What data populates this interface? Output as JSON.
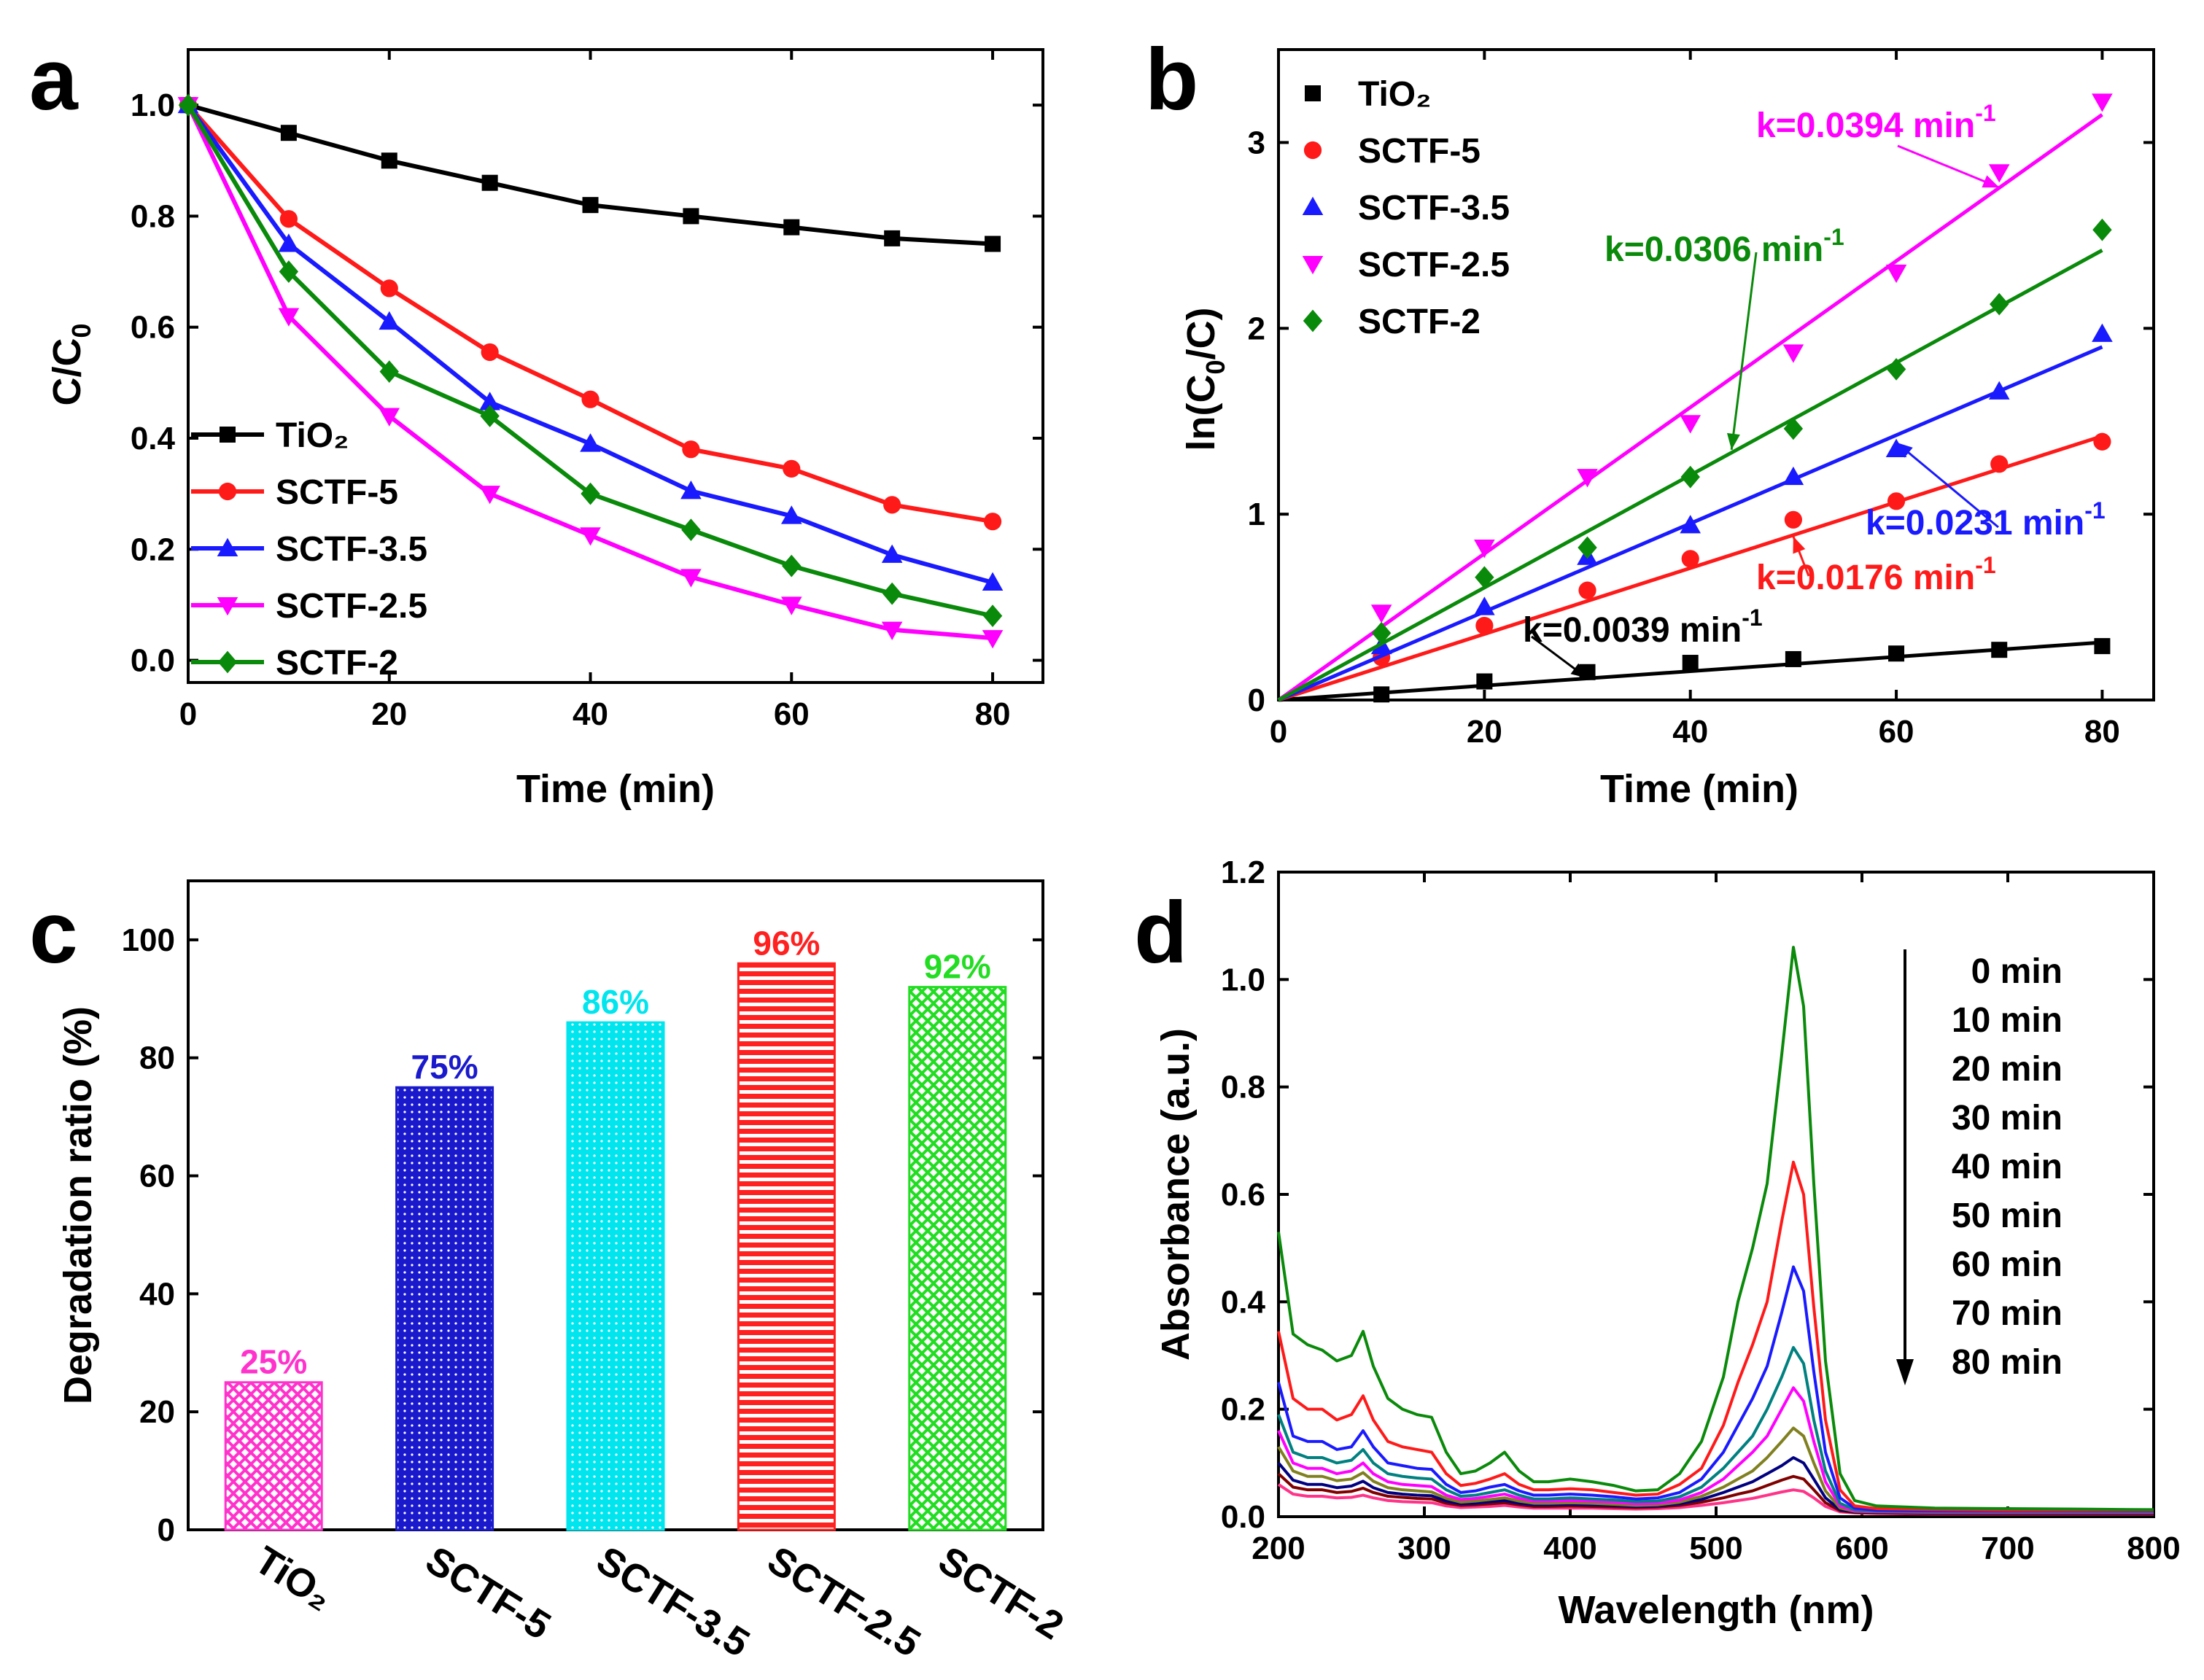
{
  "chart_data": [
    {
      "panel": "a",
      "type": "line",
      "panel_label": "a",
      "xlabel": "Time (min)",
      "ylabel": "C/C0",
      "ylabel_main": "C/C",
      "ylabel_sub": "0",
      "xlim": [
        0,
        85
      ],
      "ylim": [
        -0.04,
        1.1
      ],
      "xticks": [
        0,
        20,
        40,
        60,
        80
      ],
      "yticks": [
        0.0,
        0.2,
        0.4,
        0.6,
        0.8,
        1.0
      ],
      "ytick_labels": [
        "0.0",
        "0.2",
        "0.4",
        "0.6",
        "0.8",
        "1.0"
      ],
      "x": [
        0,
        10,
        20,
        30,
        40,
        50,
        60,
        70,
        80
      ],
      "legend_position": "bottom-left",
      "series": [
        {
          "name": "TiO₂",
          "color": "#000000",
          "marker": "square",
          "values": [
            1.0,
            0.95,
            0.9,
            0.86,
            0.82,
            0.8,
            0.78,
            0.76,
            0.75
          ]
        },
        {
          "name": "SCTF-5",
          "color": "#ff1a1a",
          "marker": "circle",
          "values": [
            1.0,
            0.795,
            0.67,
            0.555,
            0.47,
            0.38,
            0.345,
            0.28,
            0.25
          ]
        },
        {
          "name": "SCTF-3.5",
          "color": "#1a1aff",
          "marker": "triangle-up",
          "values": [
            1.0,
            0.75,
            0.61,
            0.465,
            0.39,
            0.305,
            0.26,
            0.19,
            0.14
          ]
        },
        {
          "name": "SCTF-2.5",
          "color": "#ff00ff",
          "marker": "triangle-down",
          "values": [
            1.0,
            0.62,
            0.44,
            0.3,
            0.225,
            0.15,
            0.1,
            0.055,
            0.04
          ]
        },
        {
          "name": "SCTF-2",
          "color": "#0a8a0a",
          "marker": "diamond",
          "values": [
            1.0,
            0.7,
            0.52,
            0.44,
            0.3,
            0.235,
            0.17,
            0.12,
            0.08
          ]
        }
      ]
    },
    {
      "panel": "b",
      "type": "scatter",
      "panel_label": "b",
      "xlabel": "Time (min)",
      "ylabel": "ln(C0/C)",
      "ylabel_pre": "ln(C",
      "ylabel_sub": "0",
      "ylabel_post": "/C)",
      "xlim": [
        0,
        85
      ],
      "ylim": [
        0,
        3.5
      ],
      "xticks": [
        0,
        20,
        40,
        60,
        80
      ],
      "yticks": [
        0,
        1,
        2,
        3
      ],
      "ytick_labels": [
        "0",
        "1",
        "2",
        "3"
      ],
      "x": [
        0,
        10,
        20,
        30,
        40,
        50,
        60,
        70,
        80
      ],
      "legend_position": "top-left",
      "series": [
        {
          "name": "TiO₂",
          "color": "#000000",
          "marker": "square",
          "k": 0.0039,
          "fit_end": 0.31,
          "annotation": "k=0.0039 min",
          "values": [
            0,
            0.03,
            0.1,
            0.15,
            0.2,
            0.22,
            0.25,
            0.27,
            0.29
          ]
        },
        {
          "name": "SCTF-5",
          "color": "#ff1a1a",
          "marker": "circle",
          "k": 0.0176,
          "fit_end": 1.42,
          "annotation": "k=0.0176 min",
          "values": [
            0,
            0.23,
            0.4,
            0.59,
            0.76,
            0.97,
            1.07,
            1.27,
            1.39
          ]
        },
        {
          "name": "SCTF-3.5",
          "color": "#1a1aff",
          "marker": "triangle-up",
          "k": 0.0231,
          "fit_end": 1.9,
          "annotation": "k=0.0231 min",
          "values": [
            0,
            0.29,
            0.5,
            0.77,
            0.94,
            1.2,
            1.35,
            1.66,
            1.97
          ]
        },
        {
          "name": "SCTF-2.5",
          "color": "#ff00ff",
          "marker": "triangle-down",
          "k": 0.0394,
          "fit_end": 3.15,
          "annotation": "k=0.0394 min",
          "values": [
            0,
            0.47,
            0.82,
            1.2,
            1.49,
            1.87,
            2.3,
            2.84,
            3.22
          ]
        },
        {
          "name": "SCTF-2",
          "color": "#0a8a0a",
          "marker": "diamond",
          "k": 0.0306,
          "fit_end": 2.42,
          "annotation": "k=0.0306 min",
          "values": [
            0,
            0.36,
            0.66,
            0.82,
            1.2,
            1.46,
            1.78,
            2.13,
            2.53
          ]
        }
      ],
      "annotation_unit_sup": "-1"
    },
    {
      "panel": "c",
      "type": "bar",
      "panel_label": "c",
      "xlabel": "",
      "ylabel": "Degradation ratio (%)",
      "ylim": [
        0,
        110
      ],
      "yticks": [
        0,
        20,
        40,
        60,
        80,
        100
      ],
      "ytick_labels": [
        "0",
        "20",
        "40",
        "60",
        "80",
        "100"
      ],
      "categories": [
        "TiO₂",
        "SCTF-5",
        "SCTF-3.5",
        "SCTF-2.5",
        "SCTF-2"
      ],
      "values": [
        25,
        75,
        86,
        96,
        92
      ],
      "value_labels": [
        "25%",
        "75%",
        "86%",
        "96%",
        "92%"
      ],
      "colors": [
        "#ff33cc",
        "#1a1acc",
        "#00e5ee",
        "#ff2020",
        "#22dd22"
      ],
      "label_colors": [
        "#ff33cc",
        "#1a1acc",
        "#00e5ee",
        "#ff2020",
        "#22dd22"
      ],
      "patterns": [
        "crosshatch",
        "dots",
        "dots",
        "horizontal",
        "crosshatch"
      ]
    },
    {
      "panel": "d",
      "type": "line",
      "panel_label": "d",
      "xlabel": "Wavelength (nm)",
      "ylabel": "Absorbance (a.u.)",
      "xlim": [
        200,
        800
      ],
      "ylim": [
        0,
        1.2
      ],
      "xticks": [
        200,
        300,
        400,
        500,
        600,
        700,
        800
      ],
      "yticks": [
        0.0,
        0.2,
        0.4,
        0.6,
        0.8,
        1.0,
        1.2
      ],
      "ytick_labels": [
        "0.0",
        "0.2",
        "0.4",
        "0.6",
        "0.8",
        "1.0",
        "1.2"
      ],
      "legend_position": "top-right",
      "legend_title_arrow": "decreasing with time",
      "x": [
        200,
        210,
        220,
        230,
        240,
        250,
        258,
        265,
        275,
        285,
        295,
        305,
        315,
        325,
        335,
        345,
        355,
        365,
        375,
        385,
        400,
        415,
        430,
        445,
        460,
        475,
        490,
        505,
        515,
        525,
        535,
        545,
        553,
        560,
        567,
        575,
        585,
        595,
        610,
        650,
        700,
        750,
        800
      ],
      "series": [
        {
          "name": "0 min",
          "color": "#0a8a0a",
          "values": [
            0.53,
            0.34,
            0.32,
            0.31,
            0.29,
            0.3,
            0.345,
            0.28,
            0.22,
            0.2,
            0.19,
            0.185,
            0.12,
            0.08,
            0.085,
            0.1,
            0.12,
            0.085,
            0.065,
            0.065,
            0.07,
            0.065,
            0.058,
            0.048,
            0.05,
            0.08,
            0.14,
            0.26,
            0.4,
            0.5,
            0.62,
            0.86,
            1.06,
            0.95,
            0.62,
            0.29,
            0.08,
            0.03,
            0.02,
            0.016,
            0.015,
            0.014,
            0.013
          ]
        },
        {
          "name": "10 min",
          "color": "#ff1a1a",
          "values": [
            0.345,
            0.22,
            0.2,
            0.2,
            0.18,
            0.19,
            0.225,
            0.18,
            0.14,
            0.13,
            0.125,
            0.12,
            0.08,
            0.058,
            0.062,
            0.07,
            0.08,
            0.06,
            0.05,
            0.05,
            0.052,
            0.05,
            0.045,
            0.04,
            0.042,
            0.06,
            0.09,
            0.17,
            0.25,
            0.32,
            0.4,
            0.55,
            0.66,
            0.6,
            0.39,
            0.18,
            0.05,
            0.02,
            0.015,
            0.013,
            0.012,
            0.012,
            0.012
          ]
        },
        {
          "name": "20 min",
          "color": "#1a1aff",
          "values": [
            0.25,
            0.15,
            0.14,
            0.14,
            0.125,
            0.13,
            0.16,
            0.13,
            0.1,
            0.095,
            0.09,
            0.088,
            0.06,
            0.045,
            0.048,
            0.055,
            0.06,
            0.048,
            0.04,
            0.04,
            0.042,
            0.04,
            0.037,
            0.033,
            0.035,
            0.045,
            0.07,
            0.12,
            0.17,
            0.22,
            0.28,
            0.38,
            0.465,
            0.42,
            0.27,
            0.12,
            0.035,
            0.016,
            0.012,
            0.011,
            0.011,
            0.011,
            0.011
          ]
        },
        {
          "name": "30 min",
          "color": "#008080",
          "values": [
            0.19,
            0.12,
            0.11,
            0.11,
            0.1,
            0.105,
            0.125,
            0.1,
            0.08,
            0.075,
            0.072,
            0.07,
            0.05,
            0.038,
            0.04,
            0.045,
            0.05,
            0.04,
            0.033,
            0.033,
            0.035,
            0.033,
            0.031,
            0.028,
            0.029,
            0.037,
            0.055,
            0.09,
            0.12,
            0.15,
            0.2,
            0.26,
            0.315,
            0.285,
            0.18,
            0.085,
            0.025,
            0.013,
            0.011,
            0.01,
            0.01,
            0.01,
            0.01
          ]
        },
        {
          "name": "40 min",
          "color": "#ff00ff",
          "values": [
            0.16,
            0.1,
            0.09,
            0.09,
            0.08,
            0.085,
            0.1,
            0.08,
            0.065,
            0.06,
            0.058,
            0.056,
            0.04,
            0.032,
            0.034,
            0.038,
            0.042,
            0.034,
            0.029,
            0.029,
            0.03,
            0.029,
            0.027,
            0.024,
            0.025,
            0.031,
            0.045,
            0.07,
            0.095,
            0.12,
            0.15,
            0.2,
            0.24,
            0.215,
            0.14,
            0.065,
            0.02,
            0.011,
            0.01,
            0.009,
            0.009,
            0.009,
            0.009
          ]
        },
        {
          "name": "50 min",
          "color": "#808020",
          "values": [
            0.13,
            0.085,
            0.075,
            0.075,
            0.067,
            0.07,
            0.082,
            0.066,
            0.054,
            0.05,
            0.048,
            0.046,
            0.034,
            0.027,
            0.029,
            0.032,
            0.035,
            0.029,
            0.025,
            0.025,
            0.026,
            0.025,
            0.023,
            0.021,
            0.022,
            0.027,
            0.038,
            0.055,
            0.07,
            0.085,
            0.11,
            0.14,
            0.165,
            0.15,
            0.1,
            0.048,
            0.016,
            0.01,
            0.009,
            0.008,
            0.008,
            0.008,
            0.008
          ]
        },
        {
          "name": "60 min",
          "color": "#000080",
          "values": [
            0.1,
            0.068,
            0.06,
            0.06,
            0.054,
            0.057,
            0.066,
            0.054,
            0.045,
            0.042,
            0.04,
            0.039,
            0.029,
            0.024,
            0.025,
            0.028,
            0.03,
            0.025,
            0.022,
            0.022,
            0.023,
            0.022,
            0.021,
            0.019,
            0.02,
            0.024,
            0.032,
            0.045,
            0.055,
            0.065,
            0.08,
            0.095,
            0.11,
            0.1,
            0.07,
            0.035,
            0.013,
            0.009,
            0.008,
            0.007,
            0.007,
            0.007,
            0.007
          ]
        },
        {
          "name": "70 min",
          "color": "#800000",
          "values": [
            0.08,
            0.055,
            0.05,
            0.05,
            0.045,
            0.047,
            0.053,
            0.045,
            0.038,
            0.036,
            0.034,
            0.033,
            0.025,
            0.021,
            0.022,
            0.024,
            0.026,
            0.022,
            0.019,
            0.019,
            0.02,
            0.019,
            0.018,
            0.017,
            0.018,
            0.021,
            0.027,
            0.035,
            0.042,
            0.048,
            0.058,
            0.068,
            0.075,
            0.07,
            0.05,
            0.026,
            0.011,
            0.008,
            0.007,
            0.006,
            0.006,
            0.006,
            0.006
          ]
        },
        {
          "name": "80 min",
          "color": "#ff3388",
          "values": [
            0.06,
            0.042,
            0.038,
            0.038,
            0.035,
            0.036,
            0.04,
            0.035,
            0.03,
            0.028,
            0.027,
            0.026,
            0.02,
            0.017,
            0.018,
            0.019,
            0.021,
            0.018,
            0.016,
            0.016,
            0.016,
            0.016,
            0.015,
            0.014,
            0.015,
            0.017,
            0.021,
            0.026,
            0.03,
            0.034,
            0.04,
            0.046,
            0.05,
            0.047,
            0.035,
            0.019,
            0.009,
            0.007,
            0.006,
            0.005,
            0.005,
            0.005,
            0.005
          ]
        }
      ]
    }
  ]
}
